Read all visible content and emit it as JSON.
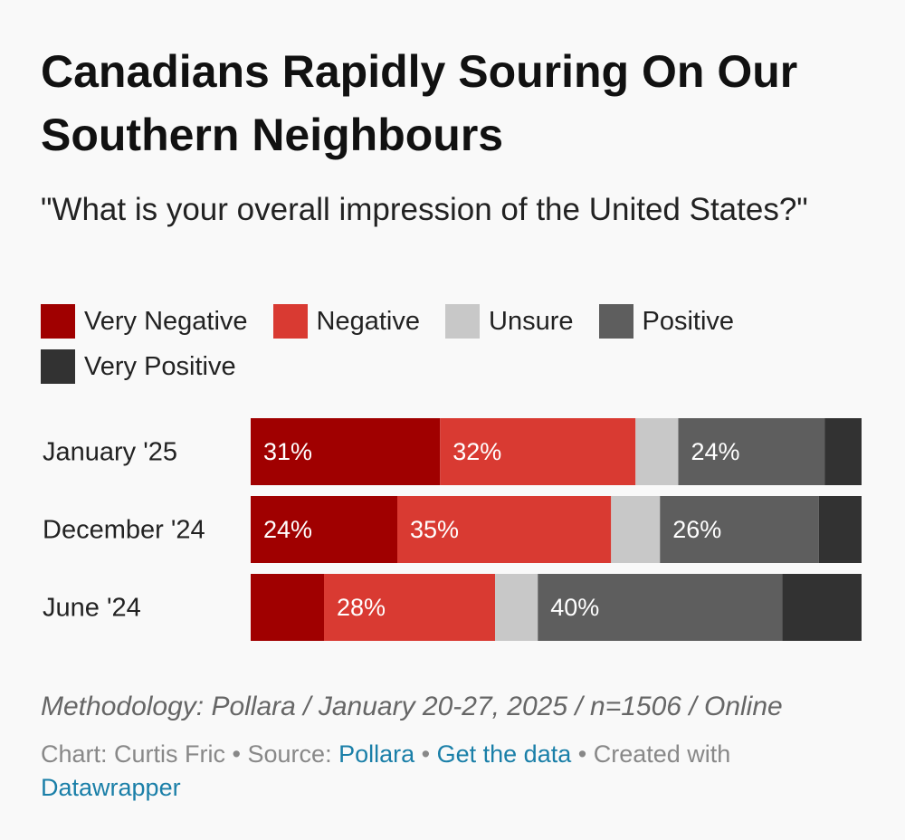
{
  "chart_data": {
    "type": "stacked-bar-100",
    "title": "Canadians Rapidly Souring On Our Southern Neighbours",
    "subtitle": "\"What is your overall impression of the United States?\"",
    "categories": [
      "January '25",
      "December '24",
      "June '24"
    ],
    "series": [
      {
        "name": "Very Negative",
        "color": "#a00000",
        "values": [
          31,
          24,
          12
        ],
        "value_labels": [
          "31%",
          "24%",
          null
        ]
      },
      {
        "name": "Negative",
        "color": "#d93a32",
        "values": [
          32,
          35,
          28
        ],
        "value_labels": [
          "32%",
          "35%",
          "28%"
        ]
      },
      {
        "name": "Unsure",
        "color": "#c8c8c8",
        "values": [
          7,
          8,
          7
        ],
        "value_labels": [
          null,
          null,
          null
        ]
      },
      {
        "name": "Positive",
        "color": "#5e5e5e",
        "values": [
          24,
          26,
          40
        ],
        "value_labels": [
          "24%",
          "26%",
          "40%"
        ]
      },
      {
        "name": "Very Positive",
        "color": "#323232",
        "values": [
          6,
          7,
          13
        ],
        "value_labels": [
          null,
          null,
          null
        ]
      }
    ],
    "notes": "Methodology: Pollara / January 20-27, 2025 / n=1506 / Online",
    "footer": [
      "Chart: Curtis Fric",
      "•",
      "Source:",
      "Pollara",
      "•",
      "Get the data",
      "•",
      "Created with",
      "Datawrapper"
    ]
  }
}
